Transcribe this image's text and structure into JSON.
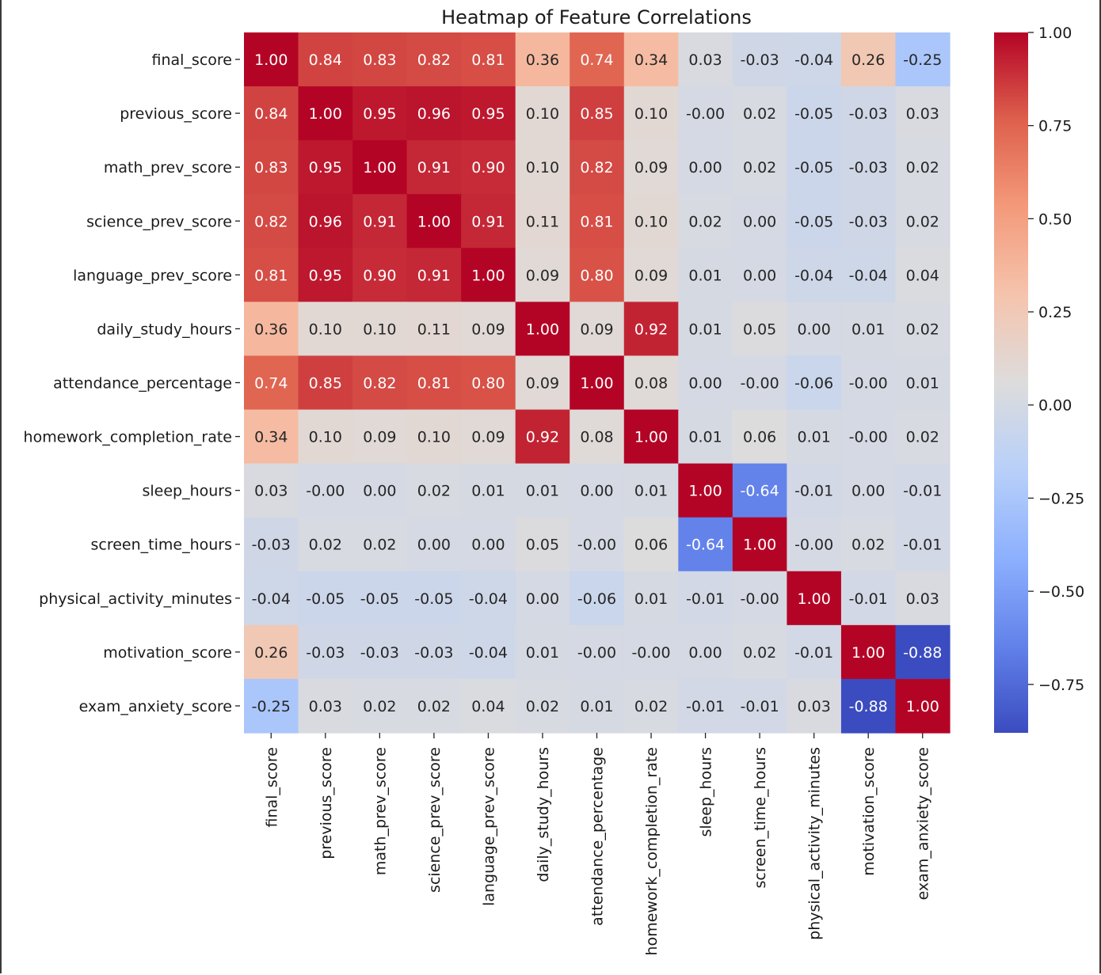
{
  "chart_data": {
    "type": "heatmap",
    "title": "Heatmap of Feature Correlations",
    "colormap": "coolwarm",
    "vmin": -0.88,
    "vmax": 1.0,
    "colormap_stops": [
      "#3b4cc0",
      "#6282ea",
      "#8db0fe",
      "#b8d0f9",
      "#dddcdc",
      "#f5c4ad",
      "#f49a7b",
      "#de604d",
      "#b40426"
    ],
    "row_labels": [
      "final_score",
      "previous_score",
      "math_prev_score",
      "science_prev_score",
      "language_prev_score",
      "daily_study_hours",
      "attendance_percentage",
      "homework_completion_rate",
      "sleep_hours",
      "screen_time_hours",
      "physical_activity_minutes",
      "motivation_score",
      "exam_anxiety_score"
    ],
    "col_labels": [
      "final_score",
      "previous_score",
      "math_prev_score",
      "science_prev_score",
      "language_prev_score",
      "daily_study_hours",
      "attendance_percentage",
      "homework_completion_rate",
      "sleep_hours",
      "screen_time_hours",
      "physical_activity_minutes",
      "motivation_score",
      "exam_anxiety_score"
    ],
    "annotations": [
      [
        "1.00",
        "0.84",
        "0.83",
        "0.82",
        "0.81",
        "0.36",
        "0.74",
        "0.34",
        "0.03",
        "-0.03",
        "-0.04",
        "0.26",
        "-0.25"
      ],
      [
        "0.84",
        "1.00",
        "0.95",
        "0.96",
        "0.95",
        "0.10",
        "0.85",
        "0.10",
        "-0.00",
        "0.02",
        "-0.05",
        "-0.03",
        "0.03"
      ],
      [
        "0.83",
        "0.95",
        "1.00",
        "0.91",
        "0.90",
        "0.10",
        "0.82",
        "0.09",
        "0.00",
        "0.02",
        "-0.05",
        "-0.03",
        "0.02"
      ],
      [
        "0.82",
        "0.96",
        "0.91",
        "1.00",
        "0.91",
        "0.11",
        "0.81",
        "0.10",
        "0.02",
        "0.00",
        "-0.05",
        "-0.03",
        "0.02"
      ],
      [
        "0.81",
        "0.95",
        "0.90",
        "0.91",
        "1.00",
        "0.09",
        "0.80",
        "0.09",
        "0.01",
        "0.00",
        "-0.04",
        "-0.04",
        "0.04"
      ],
      [
        "0.36",
        "0.10",
        "0.10",
        "0.11",
        "0.09",
        "1.00",
        "0.09",
        "0.92",
        "0.01",
        "0.05",
        "0.00",
        "0.01",
        "0.02"
      ],
      [
        "0.74",
        "0.85",
        "0.82",
        "0.81",
        "0.80",
        "0.09",
        "1.00",
        "0.08",
        "0.00",
        "-0.00",
        "-0.06",
        "-0.00",
        "0.01"
      ],
      [
        "0.34",
        "0.10",
        "0.09",
        "0.10",
        "0.09",
        "0.92",
        "0.08",
        "1.00",
        "0.01",
        "0.06",
        "0.01",
        "-0.00",
        "0.02"
      ],
      [
        "0.03",
        "-0.00",
        "0.00",
        "0.02",
        "0.01",
        "0.01",
        "0.00",
        "0.01",
        "1.00",
        "-0.64",
        "-0.01",
        "0.00",
        "-0.01"
      ],
      [
        "-0.03",
        "0.02",
        "0.02",
        "0.00",
        "0.00",
        "0.05",
        "-0.00",
        "0.06",
        "-0.64",
        "1.00",
        "-0.00",
        "0.02",
        "-0.01"
      ],
      [
        "-0.04",
        "-0.05",
        "-0.05",
        "-0.05",
        "-0.04",
        "0.00",
        "-0.06",
        "0.01",
        "-0.01",
        "-0.00",
        "1.00",
        "-0.01",
        "0.03"
      ],
      [
        "0.26",
        "-0.03",
        "-0.03",
        "-0.03",
        "-0.04",
        "0.01",
        "-0.00",
        "-0.00",
        "0.00",
        "0.02",
        "-0.01",
        "1.00",
        "-0.88"
      ],
      [
        "-0.25",
        "0.03",
        "0.02",
        "0.02",
        "0.04",
        "0.02",
        "0.01",
        "0.02",
        "-0.01",
        "-0.01",
        "0.03",
        "-0.88",
        "1.00"
      ]
    ],
    "colorbar": {
      "ticks": [
        1.0,
        0.75,
        0.5,
        0.25,
        0.0,
        -0.25,
        -0.5,
        -0.75
      ],
      "tick_labels": [
        "1.00",
        "0.75",
        "0.50",
        "0.25",
        "0.00",
        "−0.25",
        "−0.50",
        "−0.75"
      ]
    }
  }
}
